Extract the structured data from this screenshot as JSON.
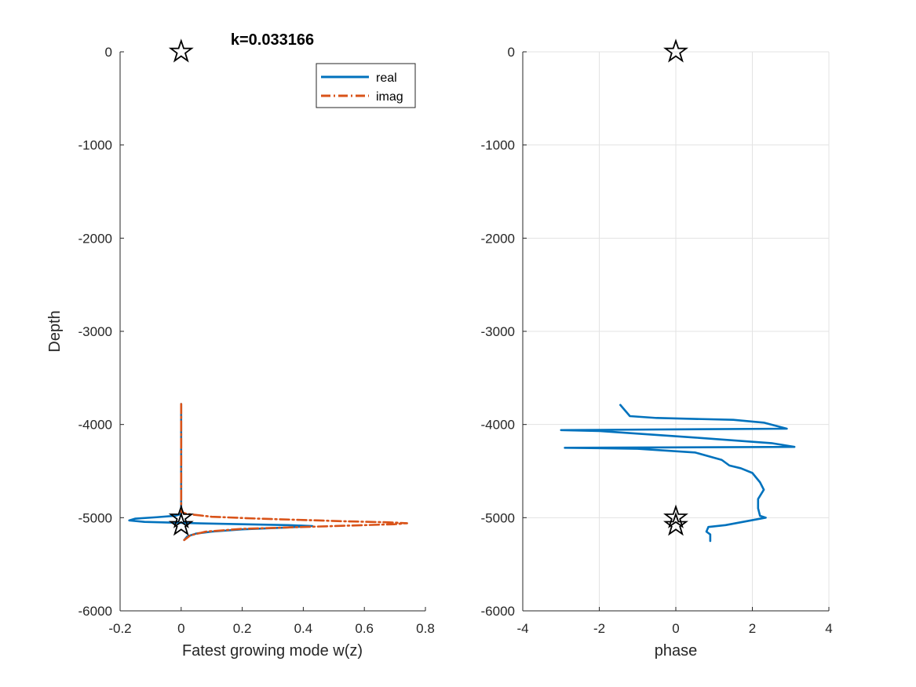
{
  "chart_data": [
    {
      "type": "line",
      "title": "k=0.033166",
      "xlabel": "Fatest growing mode w(z)",
      "ylabel": "Depth",
      "xlim": [
        -0.2,
        0.8
      ],
      "ylim": [
        -6000,
        0
      ],
      "xticks": [
        "-0.2",
        "0",
        "0.2",
        "0.4",
        "0.6",
        "0.8"
      ],
      "yticks": [
        "-6000",
        "-5000",
        "-4000",
        "-3000",
        "-2000",
        "-1000",
        "0"
      ],
      "grid": false,
      "legend_placement": "top-right",
      "series": [
        {
          "name": "real",
          "color": "#0072BD",
          "style": "solid",
          "points": [
            [
              0,
              -3780
            ],
            [
              0,
              -4500
            ],
            [
              0,
              -4850
            ],
            [
              0,
              -4960
            ],
            [
              -0.02,
              -4980
            ],
            [
              -0.08,
              -4995
            ],
            [
              -0.15,
              -5010
            ],
            [
              -0.17,
              -5030
            ],
            [
              -0.12,
              -5045
            ],
            [
              0.05,
              -5060
            ],
            [
              0.2,
              -5070
            ],
            [
              0.35,
              -5080
            ],
            [
              0.43,
              -5090
            ],
            [
              0.35,
              -5105
            ],
            [
              0.2,
              -5125
            ],
            [
              0.1,
              -5150
            ],
            [
              0.05,
              -5170
            ],
            [
              0.02,
              -5200
            ],
            [
              0.01,
              -5240
            ]
          ]
        },
        {
          "name": "imag",
          "color": "#D95319",
          "style": "dashdot",
          "points": [
            [
              0,
              -3780
            ],
            [
              0,
              -4500
            ],
            [
              0,
              -4850
            ],
            [
              0,
              -4940
            ],
            [
              0.02,
              -4960
            ],
            [
              0.1,
              -4990
            ],
            [
              0.25,
              -5010
            ],
            [
              0.4,
              -5025
            ],
            [
              0.55,
              -5040
            ],
            [
              0.68,
              -5050
            ],
            [
              0.74,
              -5060
            ],
            [
              0.7,
              -5070
            ],
            [
              0.55,
              -5085
            ],
            [
              0.4,
              -5100
            ],
            [
              0.2,
              -5120
            ],
            [
              0.08,
              -5150
            ],
            [
              0.03,
              -5190
            ],
            [
              0.01,
              -5240
            ]
          ]
        },
        {
          "name": "",
          "marker": "star",
          "color": "#000000",
          "points": [
            [
              0,
              0
            ],
            [
              0,
              -5000
            ],
            [
              0,
              -5080
            ]
          ]
        }
      ]
    },
    {
      "type": "line",
      "title": "",
      "xlabel": "phase",
      "ylabel": "",
      "xlim": [
        -4,
        4
      ],
      "ylim": [
        -6000,
        0
      ],
      "xticks": [
        "-4",
        "-2",
        "0",
        "2",
        "4"
      ],
      "yticks": [
        "-6000",
        "-5000",
        "-4000",
        "-3000",
        "-2000",
        "-1000",
        "0"
      ],
      "grid": true,
      "series": [
        {
          "name": "",
          "color": "#0072BD",
          "style": "solid",
          "points": [
            [
              -1.45,
              -3790
            ],
            [
              -1.2,
              -3910
            ],
            [
              -0.5,
              -3930
            ],
            [
              1.5,
              -3950
            ],
            [
              2.3,
              -3980
            ],
            [
              2.9,
              -4045
            ],
            [
              -3.0,
              -4060
            ],
            [
              -2.0,
              -4070
            ],
            [
              0.5,
              -4140
            ],
            [
              2.5,
              -4200
            ],
            [
              3.1,
              -4240
            ],
            [
              -2.9,
              -4250
            ],
            [
              -1.0,
              -4260
            ],
            [
              0.5,
              -4300
            ],
            [
              1.2,
              -4380
            ],
            [
              1.4,
              -4440
            ],
            [
              1.7,
              -4470
            ],
            [
              2.0,
              -4520
            ],
            [
              2.2,
              -4620
            ],
            [
              2.3,
              -4700
            ],
            [
              2.15,
              -4800
            ],
            [
              2.15,
              -4900
            ],
            [
              2.2,
              -4980
            ],
            [
              2.35,
              -5000
            ],
            [
              1.3,
              -5080
            ],
            [
              0.85,
              -5100
            ],
            [
              0.8,
              -5150
            ],
            [
              0.9,
              -5180
            ],
            [
              0.9,
              -5250
            ]
          ]
        },
        {
          "name": "",
          "marker": "star",
          "color": "#000000",
          "points": [
            [
              0,
              0
            ],
            [
              0,
              -5000
            ],
            [
              0,
              -5080
            ]
          ]
        }
      ]
    }
  ]
}
